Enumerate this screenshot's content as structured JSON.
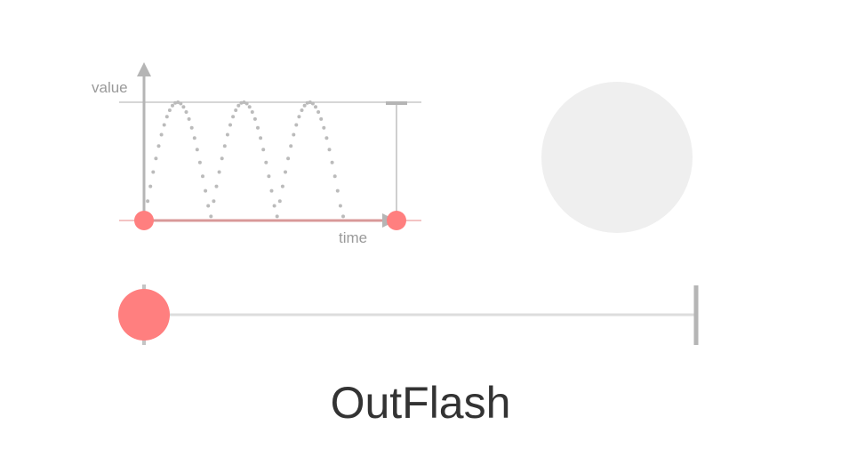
{
  "easing": {
    "name": "OutFlash",
    "flashes": 3,
    "progress": 0
  },
  "graph": {
    "y_axis_label": "value",
    "x_axis_label": "time"
  },
  "colors": {
    "accent": "#ff7f7f",
    "track": "#dddddd",
    "axis": "#b5b5b5",
    "curve": "#bbbbbb",
    "preview": "#efefef",
    "text": "#333333"
  }
}
